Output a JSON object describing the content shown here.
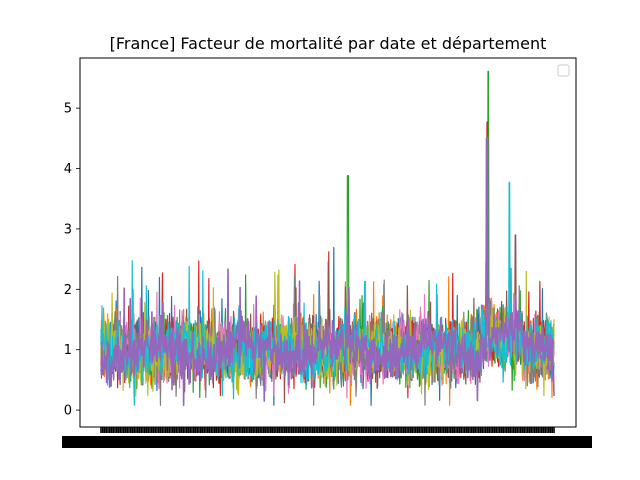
{
  "chart_data": {
    "type": "line",
    "title": "[France] Facteur de mortalité par date et département",
    "xlabel": "",
    "ylabel": "",
    "ylim": [
      -0.28,
      5.83
    ],
    "yticks": [
      0,
      1,
      2,
      3,
      4,
      5
    ],
    "ytick_labels": [
      "0",
      "1",
      "2",
      "3",
      "4",
      "5"
    ],
    "x_tick_labels_note": "",
    "grid": false,
    "legend": {
      "location": "top-right",
      "entries": []
    },
    "n_points": 900,
    "baseline": 1.0,
    "series_colors": [
      "#1f77b4",
      "#ff7f0e",
      "#2ca02c",
      "#d62728",
      "#9467bd",
      "#8c564b",
      "#e377c2",
      "#7f7f7f",
      "#bcbd22",
      "#17becf"
    ],
    "spikes": [
      {
        "series": 2,
        "x_frac": 0.545,
        "value": 3.88
      },
      {
        "series": 2,
        "x_frac": 0.855,
        "value": 5.61
      },
      {
        "series": 3,
        "x_frac": 0.853,
        "value": 4.77
      },
      {
        "series": 4,
        "x_frac": 0.852,
        "value": 4.5
      },
      {
        "series": 9,
        "x_frac": 0.902,
        "value": 3.77
      },
      {
        "series": 5,
        "x_frac": 0.915,
        "value": 2.9
      }
    ]
  }
}
